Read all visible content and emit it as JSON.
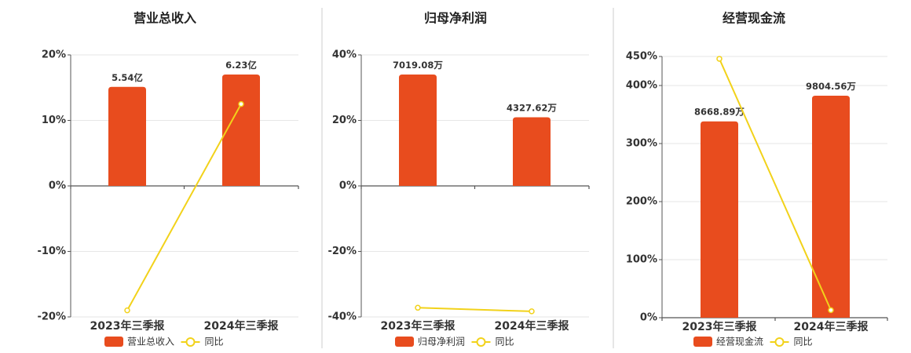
{
  "colors": {
    "bar": "#e84c1e",
    "line": "#f2d21a",
    "marker_fill": "#ffffff"
  },
  "legend_line_label": "同比",
  "chart_data": [
    {
      "type": "bar",
      "title": "营业总收入",
      "categories": [
        "2023年三季报",
        "2024年三季报"
      ],
      "bar_series": {
        "name": "营业总收入",
        "labels": [
          "5.54亿",
          "6.23亿"
        ],
        "values": [
          5.54,
          6.23
        ],
        "unit": "亿"
      },
      "line_series": {
        "name": "同比",
        "values": [
          -19,
          12.5
        ]
      },
      "yticks": [
        20,
        10,
        0,
        -10,
        -20
      ],
      "ytick_labels": [
        "20%",
        "10%",
        "0%",
        "-10%",
        "-20%"
      ],
      "ylim": [
        -20,
        20
      ],
      "legend_position": "bottom-center"
    },
    {
      "type": "bar",
      "title": "归母净利润",
      "categories": [
        "2023年三季报",
        "2024年三季报"
      ],
      "bar_series": {
        "name": "归母净利润",
        "labels": [
          "7019.08万",
          "4327.62万"
        ],
        "values": [
          7019.08,
          4327.62
        ],
        "unit": "万"
      },
      "line_series": {
        "name": "同比",
        "values": [
          -37.2,
          -38.3
        ]
      },
      "yticks": [
        40,
        20,
        0,
        -20,
        -40
      ],
      "ytick_labels": [
        "40%",
        "20%",
        "0%",
        "-20%",
        "-40%"
      ],
      "ylim": [
        -40,
        40
      ],
      "legend_position": "bottom-center"
    },
    {
      "type": "bar",
      "title": "经营现金流",
      "categories": [
        "2023年三季报",
        "2024年三季报"
      ],
      "bar_series": {
        "name": "经营现金流",
        "labels": [
          "8668.89万",
          "9804.56万"
        ],
        "values": [
          8668.89,
          9804.56
        ],
        "unit": "万"
      },
      "line_series": {
        "name": "同比",
        "values": [
          446,
          13
        ]
      },
      "yticks": [
        450,
        400,
        300,
        200,
        100,
        0
      ],
      "ytick_labels": [
        "450%",
        "400%",
        "300%",
        "200%",
        "100%",
        "0%"
      ],
      "ylim": [
        0,
        450
      ],
      "legend_position": "bottom-center"
    }
  ]
}
